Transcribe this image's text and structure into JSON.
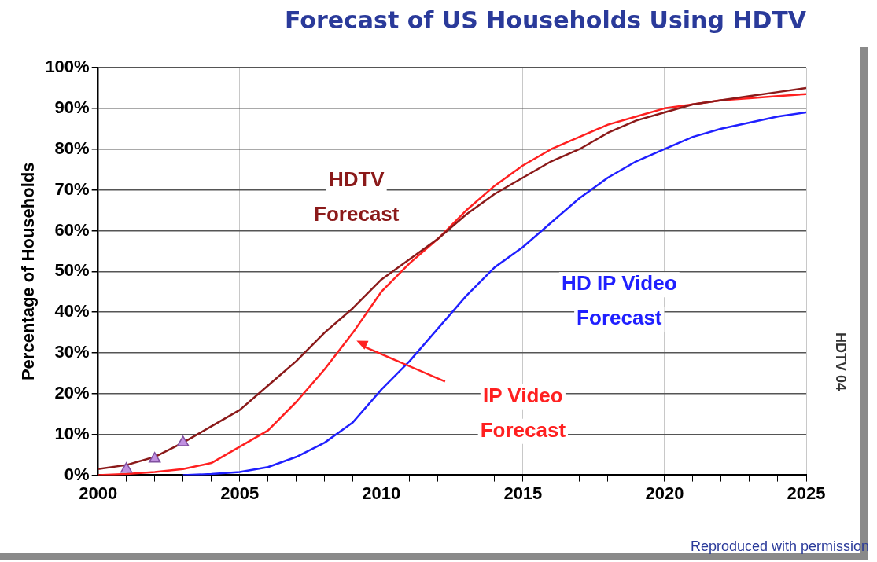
{
  "chart_data": {
    "type": "line",
    "title": "Forecast of US Households Using HDTV",
    "ylabel": "Percentage of Households",
    "annotations": [
      "HDTV 04",
      "Reproduced with permission"
    ],
    "xlim": [
      2000,
      2025
    ],
    "xticks": [
      2000,
      {
        "value": 2001,
        "label": null
      },
      {
        "value": 2002,
        "label": null
      },
      {
        "value": 2003,
        "label": null
      },
      {
        "value": 2004,
        "label": null
      },
      2005,
      {
        "value": 2006,
        "label": null
      },
      {
        "value": 2007,
        "label": null
      },
      {
        "value": 2008,
        "label": null
      },
      {
        "value": 2009,
        "label": null
      },
      2010,
      {
        "value": 2011,
        "label": null
      },
      {
        "value": 2012,
        "label": null
      },
      {
        "value": 2013,
        "label": null
      },
      {
        "value": 2014,
        "label": null
      },
      2015,
      {
        "value": 2016,
        "label": null
      },
      {
        "value": 2017,
        "label": null
      },
      {
        "value": 2018,
        "label": null
      },
      {
        "value": 2019,
        "label": null
      },
      2020,
      {
        "value": 2021,
        "label": null
      },
      {
        "value": 2022,
        "label": null
      },
      {
        "value": 2023,
        "label": null
      },
      {
        "value": 2024,
        "label": null
      },
      2025
    ],
    "ylim": [
      0,
      100
    ],
    "yticks": [
      {
        "value": 0,
        "label": "0%"
      },
      {
        "value": 10,
        "label": "10%"
      },
      {
        "value": 20,
        "label": "20%"
      },
      {
        "value": 30,
        "label": "30%"
      },
      {
        "value": 40,
        "label": "40%"
      },
      {
        "value": 50,
        "label": "50%"
      },
      {
        "value": 60,
        "label": "60%"
      },
      {
        "value": 70,
        "label": "70%"
      },
      {
        "value": 80,
        "label": "80%"
      },
      {
        "value": 90,
        "label": "90%"
      },
      {
        "value": 100,
        "label": "100%"
      }
    ],
    "grid": true,
    "legend": false,
    "marker": "none",
    "line_style": "solid",
    "x": [
      2000,
      2001,
      2002,
      2003,
      2004,
      2005,
      2006,
      2007,
      2008,
      2009,
      2010,
      2011,
      2012,
      2013,
      2014,
      2015,
      2016,
      2017,
      2018,
      2019,
      2020,
      2021,
      2022,
      2023,
      2024,
      2025
    ],
    "series": [
      {
        "name": "HDTV Forecast",
        "color": "#8b1a1a",
        "values": [
          1.5,
          2.5,
          4.5,
          8,
          12,
          16,
          22,
          28,
          35,
          41,
          48,
          53,
          58,
          64,
          69,
          73,
          77,
          80,
          84,
          87,
          89,
          91,
          92,
          93,
          94,
          95
        ]
      },
      {
        "name": "IP Video Forecast",
        "color": "#ff2020",
        "values": [
          0,
          0.3,
          0.8,
          1.5,
          3,
          7,
          11,
          18,
          26,
          35,
          45,
          52,
          58,
          65,
          71,
          76,
          80,
          83,
          86,
          88,
          90,
          91,
          92,
          92.5,
          93,
          93.5
        ]
      },
      {
        "name": "HD IP Video Forecast",
        "color": "#2020ff",
        "values": [
          null,
          null,
          null,
          0,
          0.3,
          0.8,
          2,
          4.5,
          8,
          13,
          21,
          28,
          36,
          44,
          51,
          56,
          62,
          68,
          73,
          77,
          80,
          83,
          85,
          86.5,
          88,
          89
        ]
      },
      {
        "type": "scatter",
        "marker": "triangle",
        "color": "#c090e0",
        "x": [
          2001,
          2002,
          2003
        ],
        "values": [
          1.5,
          4,
          8
        ]
      }
    ]
  }
}
